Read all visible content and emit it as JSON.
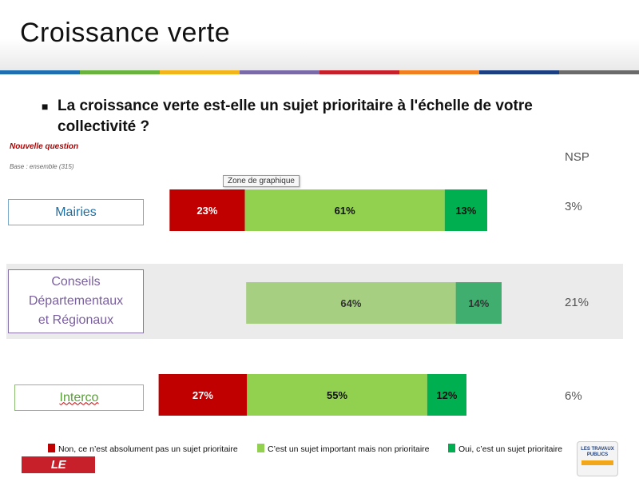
{
  "slide": {
    "title": "Croissance verte",
    "question": "La croissance verte est-elle un sujet prioritaire à l'échelle de votre collectivité ?",
    "bullet": "■",
    "new_question": "Nouvelle question",
    "base": "Base : ensemble (315)",
    "nsp_header": "NSP",
    "tooltip": "Zone de graphique",
    "logo_left": "LE MONITEUR",
    "logo_right": "LES TRAVAUX PUBLICS"
  },
  "colors": {
    "stripe": [
      "#1f6eb0",
      "#6ab33f",
      "#f2b51b",
      "#7a6aa8",
      "#c8202a",
      "#f08020",
      "#1c3f82",
      "#6b6b6b"
    ],
    "non": "#c00000",
    "important": "#92d050",
    "important_muted": "#a6cf82",
    "oui": "#00b050",
    "oui_muted": "#3fae6e"
  },
  "chart_data": {
    "type": "bar",
    "orientation": "horizontal-stacked",
    "categories": [
      "Mairies",
      "Conseils Départementaux et Régionaux",
      "Interco"
    ],
    "series": [
      {
        "name": "Non, ce n’est absolument pas un sujet prioritaire",
        "values": [
          23,
          0,
          27
        ],
        "labels": [
          "23%",
          "",
          "27%"
        ]
      },
      {
        "name": "C’est un sujet important mais non prioritaire",
        "values": [
          61,
          64,
          55
        ],
        "labels": [
          "61%",
          "64%",
          "55%"
        ]
      },
      {
        "name": "Oui, c’est un sujet prioritaire",
        "values": [
          13,
          14,
          12
        ],
        "labels": [
          "13%",
          "14%",
          "12%"
        ]
      }
    ],
    "nsp": [
      "3%",
      "21%",
      "6%"
    ],
    "legend_position": "bottom"
  },
  "row_labels": {
    "mairies": "Mairies",
    "conseils_1": "Conseils",
    "conseils_2": "Départementaux",
    "conseils_3": "et Régionaux",
    "interco": "Interco"
  }
}
